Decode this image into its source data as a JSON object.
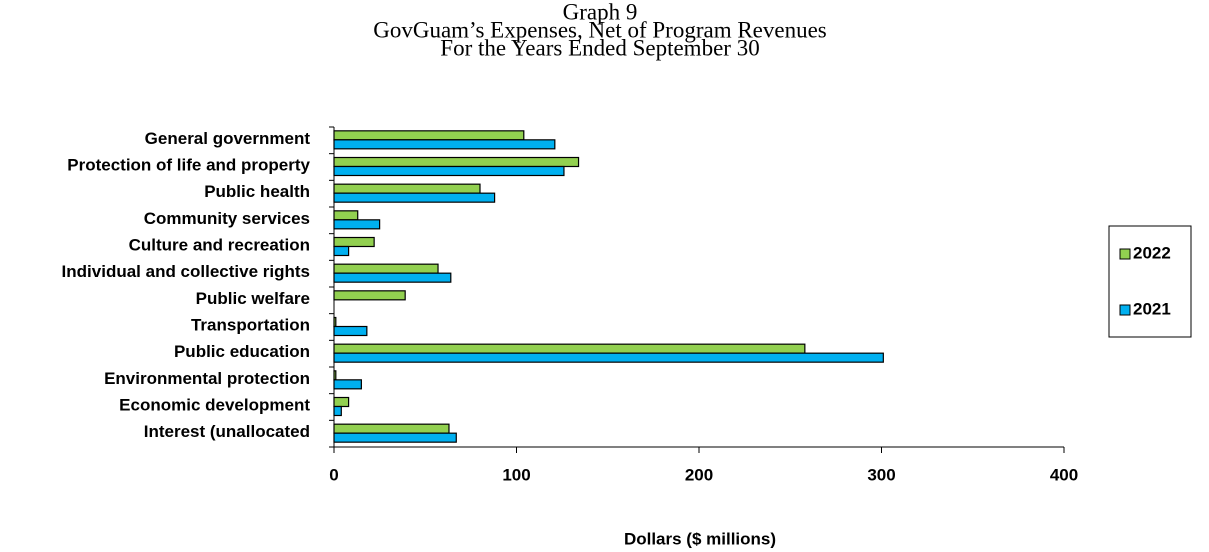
{
  "chart_data": {
    "type": "hbar",
    "title": [
      "Graph 9",
      "GovGuam’s Expenses, Net of Program Revenues",
      "For the Years Ended September 30"
    ],
    "x_label": "Dollars ($ millions)",
    "categories": [
      "General government",
      "Protection of life and property",
      "Public health",
      "Community services",
      "Culture and recreation",
      "Individual and collective rights",
      "Public welfare",
      "Transportation",
      "Public education",
      "Environmental protection",
      "Economic development",
      "Interest (unallocated"
    ],
    "series": [
      {
        "name": "2022",
        "color": "#92d050",
        "values": [
          104,
          134,
          80,
          13,
          22,
          57,
          39,
          1,
          258,
          1,
          8,
          63
        ]
      },
      {
        "name": "2021",
        "color": "#00b0f0",
        "values": [
          121,
          126,
          88,
          25,
          8,
          64,
          0,
          18,
          301,
          15,
          4,
          67
        ]
      }
    ],
    "xlim": [
      0,
      400
    ],
    "xticks": [
      0,
      100,
      200,
      300,
      400
    ],
    "legend": "right"
  }
}
